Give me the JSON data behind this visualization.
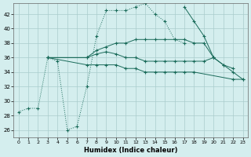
{
  "xlabel": "Humidex (Indice chaleur)",
  "background_color": "#d4eeee",
  "grid_color": "#aacccc",
  "line_color": "#1a6b5a",
  "xlim": [
    -0.5,
    23.5
  ],
  "ylim": [
    25,
    43.5
  ],
  "xticks": [
    0,
    1,
    2,
    3,
    4,
    5,
    6,
    7,
    8,
    9,
    10,
    11,
    12,
    13,
    14,
    15,
    16,
    17,
    18,
    19,
    20,
    21,
    22,
    23
  ],
  "yticks": [
    26,
    28,
    30,
    32,
    34,
    36,
    38,
    40,
    42
  ],
  "lines": [
    {
      "x": [
        0,
        1,
        2,
        3,
        4,
        5,
        6,
        7,
        8,
        9,
        10,
        11,
        12,
        13,
        14,
        15,
        16,
        17
      ],
      "y": [
        28.5,
        29,
        29,
        36,
        35.5,
        26,
        26.5,
        32,
        39,
        42.5,
        42.5,
        42.5,
        43,
        43.5,
        42,
        41,
        38.5,
        38
      ],
      "style": "dotted"
    },
    {
      "x": [
        3,
        7,
        8,
        9,
        10,
        11,
        12,
        13,
        14,
        15,
        16,
        17,
        18,
        19,
        20
      ],
      "y": [
        36,
        36,
        37,
        37.5,
        38,
        38,
        38.5,
        38.5,
        38.5,
        38.5,
        38.5,
        38.5,
        38,
        38,
        36
      ],
      "style": "solid"
    },
    {
      "x": [
        17,
        18,
        19,
        20,
        21,
        22,
        23
      ],
      "y": [
        43,
        41,
        39,
        36,
        35,
        34,
        33
      ],
      "style": "solid"
    },
    {
      "x": [
        3,
        7,
        8,
        9,
        10,
        11,
        12,
        13,
        14,
        15,
        16,
        17,
        18,
        19,
        20,
        21,
        22
      ],
      "y": [
        36,
        36,
        36.5,
        36.8,
        36.5,
        36,
        36,
        35.5,
        35.5,
        35.5,
        35.5,
        35.5,
        35.5,
        35.5,
        36,
        35,
        34.5
      ],
      "style": "solid"
    },
    {
      "x": [
        3,
        7,
        8,
        9,
        10,
        11,
        12,
        13,
        14,
        15,
        16,
        17,
        18,
        22,
        23
      ],
      "y": [
        36,
        35,
        35,
        35,
        35,
        34.5,
        34.5,
        34,
        34,
        34,
        34,
        34,
        34,
        33,
        33
      ],
      "style": "solid"
    }
  ]
}
